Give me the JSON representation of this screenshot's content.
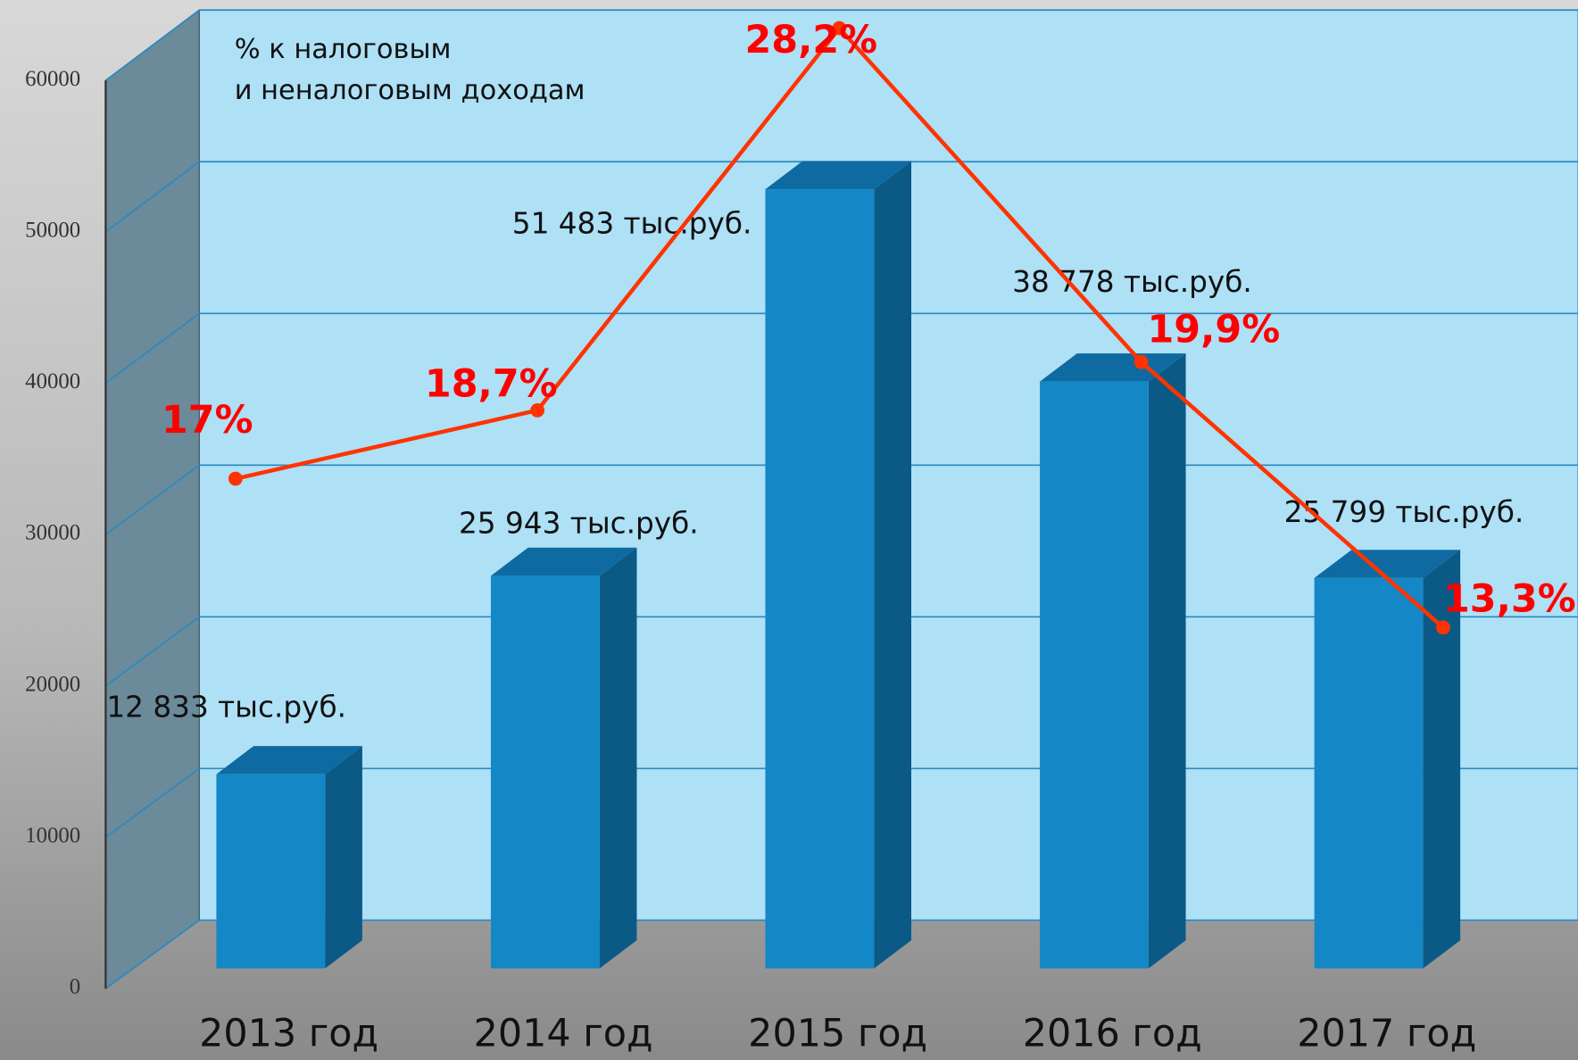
{
  "chart_data": {
    "type": "bar",
    "annotation": [
      "% к налоговым",
      "и неналоговым доходам"
    ],
    "categories": [
      "2013 год",
      "2014 год",
      "2015 год",
      "2016 год",
      "2017 год"
    ],
    "series": [
      {
        "type": "bar",
        "color": "#1487c6",
        "values": [
          12833,
          25943,
          51483,
          38778,
          25799
        ],
        "value_labels": [
          "12 833 тыс.руб.",
          "25 943 тыс.руб.",
          "51 483 тыс.руб.",
          "38 778 тыс.руб.",
          "25 799 тыс.руб."
        ]
      },
      {
        "type": "line",
        "color": "#ff3300",
        "values": [
          17,
          18.7,
          28.2,
          19.9,
          13.3
        ],
        "value_labels": [
          "17%",
          "18,7%",
          "28,2%",
          "19,9%",
          "13,3%"
        ]
      }
    ],
    "ylim": [
      0,
      60000
    ],
    "yticks": [
      0,
      10000,
      20000,
      30000,
      40000,
      50000,
      60000
    ],
    "grid": true
  }
}
